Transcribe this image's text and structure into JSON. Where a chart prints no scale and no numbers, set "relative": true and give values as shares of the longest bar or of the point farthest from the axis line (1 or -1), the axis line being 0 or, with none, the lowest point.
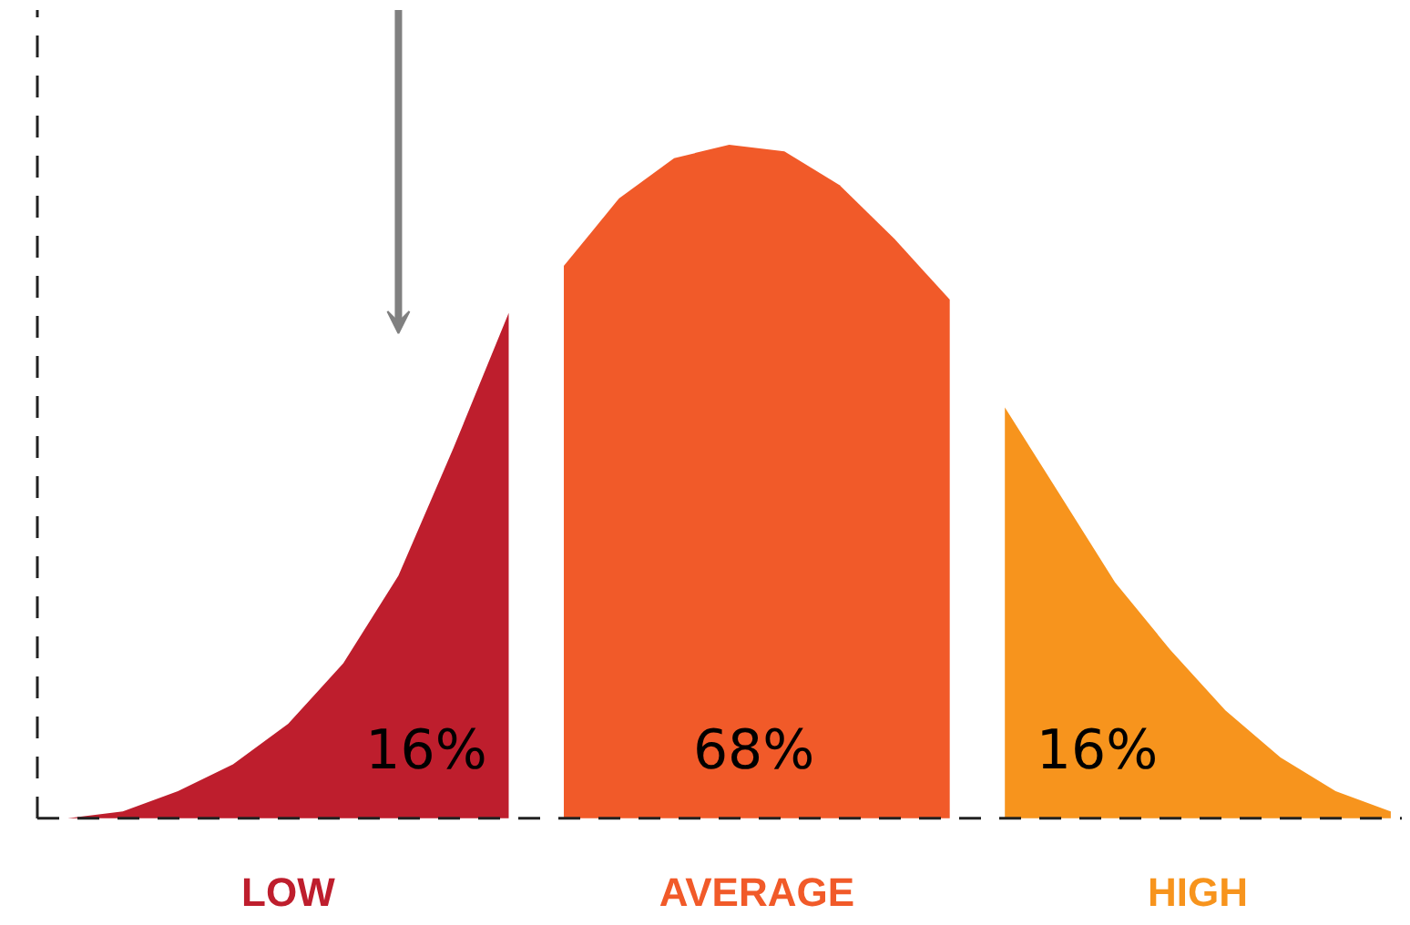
{
  "chart_data": {
    "type": "area",
    "relative": true,
    "categories": [
      null,
      null,
      null,
      null,
      null,
      null,
      null,
      null,
      null,
      null,
      null,
      null,
      null,
      null,
      null,
      null,
      null,
      null,
      null,
      null,
      null,
      null,
      null,
      null,
      null
    ],
    "series": [
      {
        "name": "LOW",
        "color": "#be1e2d",
        "values": [
          0,
          0.01,
          0.04,
          0.08,
          0.14,
          0.23,
          0.36,
          0.55,
          0.75,
          null,
          null,
          null,
          null,
          null,
          null,
          null,
          null,
          null,
          null,
          null,
          null,
          null,
          null,
          null,
          null
        ]
      },
      {
        "name": "AVERAGE",
        "color": "#f15a29",
        "values": [
          null,
          null,
          null,
          null,
          null,
          null,
          null,
          null,
          null,
          0.82,
          0.92,
          0.98,
          1,
          0.99,
          0.94,
          0.86,
          0.77,
          null,
          null,
          null,
          null,
          null,
          null,
          null,
          null
        ]
      },
      {
        "name": "HIGH",
        "color": "#f7941d",
        "values": [
          null,
          null,
          null,
          null,
          null,
          null,
          null,
          null,
          null,
          null,
          null,
          null,
          null,
          null,
          null,
          null,
          null,
          0.61,
          0.48,
          0.35,
          0.25,
          0.16,
          0.09,
          0.04,
          0.01
        ]
      }
    ],
    "annotations": [
      "16%",
      "68%",
      "16%"
    ]
  }
}
